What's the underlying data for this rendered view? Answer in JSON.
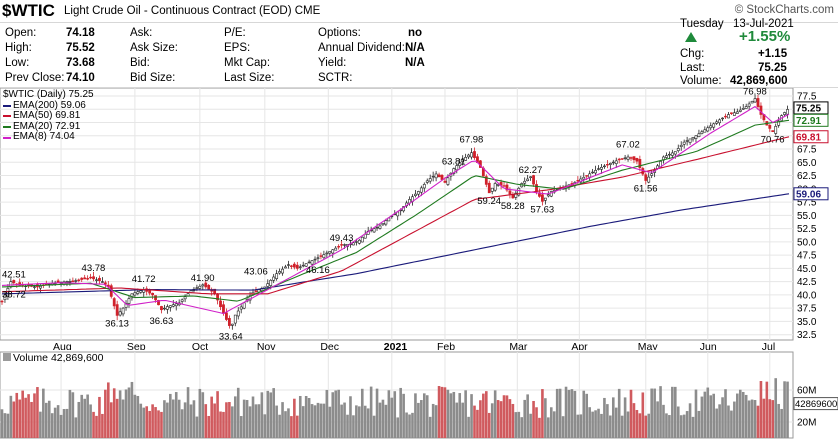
{
  "header": {
    "symbol": "$WTIC",
    "name": "Light Crude Oil - Continuous Contract (EOD)",
    "exchange": "CME",
    "watermark": "© StockCharts.com",
    "day": "Tuesday",
    "date": "13-Jul-2021"
  },
  "quote": {
    "open_label": "Open:",
    "open": "74.18",
    "high_label": "High:",
    "high": "75.52",
    "low_label": "Low:",
    "low": "73.68",
    "prev_label": "Prev Close:",
    "prev": "74.10",
    "ask_label": "Ask:",
    "ask_size_label": "Ask Size:",
    "bid_label": "Bid:",
    "bid_size_label": "Bid Size:",
    "pe_label": "P/E:",
    "eps_label": "EPS:",
    "mktcap_label": "Mkt Cap:",
    "lastsize_label": "Last Size:",
    "options_label": "Options:",
    "options": "no",
    "dividend_label": "Annual Dividend:",
    "dividend": "N/A",
    "yield_label": "Yield:",
    "yield": "N/A",
    "sctr_label": "SCTR:",
    "pct_change": "+1.55%",
    "chg_label": "Chg:",
    "chg": "+1.15",
    "last_label": "Last:",
    "last": "75.25",
    "volume_label": "Volume:",
    "volume": "42,869,600"
  },
  "legend": {
    "header": "$WTIC (Daily) 75.25",
    "items": [
      {
        "text": "EMA(200) 59.06",
        "color": "#1a1a7a"
      },
      {
        "text": "EMA(50) 69.81",
        "color": "#c8102e"
      },
      {
        "text": "EMA(20) 72.91",
        "color": "#1f7a1f"
      },
      {
        "text": "EMA(8) 74.04",
        "color": "#d020c8"
      }
    ]
  },
  "volume_panel": {
    "label": "Volume 42,869,600",
    "ticks": [
      "60M",
      "20M"
    ],
    "last_tag": "42869600"
  },
  "chart_data": {
    "type": "candlestick",
    "x_labels": [
      "Aug",
      "Sep",
      "Oct",
      "Nov",
      "Dec",
      "2021",
      "Feb",
      "Mar",
      "Apr",
      "May",
      "Jun",
      "Jul"
    ],
    "y_ticks": [
      "77.5",
      "75.0",
      "72.5",
      "70.0",
      "67.5",
      "65.0",
      "62.5",
      "60.0",
      "57.5",
      "55.0",
      "52.5",
      "50.0",
      "47.5",
      "45.0",
      "42.5",
      "40.0",
      "37.5",
      "35.0",
      "32.5"
    ],
    "ylim": [
      31.5,
      79
    ],
    "price_path": [
      [
        0,
        38.7
      ],
      [
        6,
        42.5
      ],
      [
        12,
        41.8
      ],
      [
        24,
        41.5
      ],
      [
        36,
        42.3
      ],
      [
        48,
        42.6
      ],
      [
        60,
        43.2
      ],
      [
        68,
        42.5
      ],
      [
        72,
        41.5
      ],
      [
        78,
        36.13
      ],
      [
        82,
        37.5
      ],
      [
        88,
        40.2
      ],
      [
        96,
        41.0
      ],
      [
        102,
        40.0
      ],
      [
        108,
        37.2
      ],
      [
        112,
        37.8
      ],
      [
        120,
        38.5
      ],
      [
        128,
        40.8
      ],
      [
        136,
        41.9
      ],
      [
        144,
        40.3
      ],
      [
        150,
        36.5
      ],
      [
        155,
        33.64
      ],
      [
        158,
        36.2
      ],
      [
        164,
        38.5
      ],
      [
        170,
        40.5
      ],
      [
        178,
        41.5
      ],
      [
        186,
        44.0
      ],
      [
        194,
        45.7
      ],
      [
        200,
        45.0
      ],
      [
        208,
        46.2
      ],
      [
        214,
        47.0
      ],
      [
        222,
        48.2
      ],
      [
        230,
        49.43
      ],
      [
        236,
        49.6
      ],
      [
        242,
        50.3
      ],
      [
        248,
        52.0
      ],
      [
        256,
        53.0
      ],
      [
        262,
        54.5
      ],
      [
        270,
        56.0
      ],
      [
        276,
        58.0
      ],
      [
        282,
        59.5
      ],
      [
        288,
        61.5
      ],
      [
        294,
        62.8
      ],
      [
        300,
        61.2
      ],
      [
        306,
        63.81
      ],
      [
        312,
        65.5
      ],
      [
        318,
        66.8
      ],
      [
        324,
        64.0
      ],
      [
        330,
        59.24
      ],
      [
        334,
        61.0
      ],
      [
        340,
        60.5
      ],
      [
        346,
        58.28
      ],
      [
        352,
        61.0
      ],
      [
        358,
        62.27
      ],
      [
        362,
        59.5
      ],
      [
        366,
        57.63
      ],
      [
        372,
        59.5
      ],
      [
        380,
        60.3
      ],
      [
        388,
        61.2
      ],
      [
        396,
        62.5
      ],
      [
        404,
        63.8
      ],
      [
        412,
        64.8
      ],
      [
        418,
        65.5
      ],
      [
        424,
        66.0
      ],
      [
        430,
        65.2
      ],
      [
        436,
        61.56
      ],
      [
        442,
        63.5
      ],
      [
        448,
        66.0
      ],
      [
        456,
        67.02
      ],
      [
        462,
        68.8
      ],
      [
        470,
        70.0
      ],
      [
        478,
        71.5
      ],
      [
        486,
        73.0
      ],
      [
        492,
        74.0
      ],
      [
        498,
        74.5
      ],
      [
        504,
        75.5
      ],
      [
        510,
        76.98
      ],
      [
        514,
        74.0
      ],
      [
        518,
        72.0
      ],
      [
        522,
        70.76
      ],
      [
        528,
        73.8
      ],
      [
        533,
        75.25
      ]
    ],
    "ema200_path": [
      [
        0,
        40.2
      ],
      [
        100,
        41.0
      ],
      [
        170,
        40.9
      ],
      [
        240,
        44.0
      ],
      [
        320,
        48.5
      ],
      [
        400,
        53.0
      ],
      [
        460,
        56.0
      ],
      [
        533,
        59.06
      ]
    ],
    "ema50_path": [
      [
        0,
        40.6
      ],
      [
        80,
        41.3
      ],
      [
        140,
        40.2
      ],
      [
        180,
        40.2
      ],
      [
        230,
        44.5
      ],
      [
        280,
        52.0
      ],
      [
        320,
        58.0
      ],
      [
        370,
        59.8
      ],
      [
        420,
        62.2
      ],
      [
        470,
        65.5
      ],
      [
        533,
        69.81
      ]
    ],
    "ema20_path": [
      [
        0,
        41.5
      ],
      [
        60,
        42.2
      ],
      [
        90,
        39.5
      ],
      [
        130,
        39.8
      ],
      [
        160,
        38.8
      ],
      [
        200,
        43.5
      ],
      [
        240,
        48.0
      ],
      [
        280,
        55.0
      ],
      [
        320,
        62.5
      ],
      [
        350,
        60.8
      ],
      [
        380,
        59.9
      ],
      [
        420,
        63.5
      ],
      [
        470,
        67.0
      ],
      [
        510,
        72.0
      ],
      [
        533,
        72.91
      ]
    ],
    "ema8_path": [
      [
        0,
        41.8
      ],
      [
        40,
        42.3
      ],
      [
        70,
        42.0
      ],
      [
        85,
        38.0
      ],
      [
        110,
        39.0
      ],
      [
        150,
        36.5
      ],
      [
        180,
        41.0
      ],
      [
        230,
        48.5
      ],
      [
        280,
        58.0
      ],
      [
        300,
        62.0
      ],
      [
        320,
        65.5
      ],
      [
        340,
        60.0
      ],
      [
        370,
        59.0
      ],
      [
        420,
        64.5
      ],
      [
        440,
        63.0
      ],
      [
        480,
        70.5
      ],
      [
        510,
        75.5
      ],
      [
        522,
        72.5
      ],
      [
        533,
        74.04
      ]
    ],
    "annotations": [
      {
        "text": "42.51",
        "x": 2,
        "y": 42.51
      },
      {
        "text": "38.72",
        "x": 0,
        "y": 38.72
      },
      {
        "text": "43.78",
        "x": 62,
        "y": 43.78
      },
      {
        "text": "36.13",
        "x": 78,
        "y": 36.13
      },
      {
        "text": "41.72",
        "x": 96,
        "y": 41.72
      },
      {
        "text": "36.63",
        "x": 108,
        "y": 36.63
      },
      {
        "text": "41.90",
        "x": 136,
        "y": 41.9
      },
      {
        "text": "33.64",
        "x": 155,
        "y": 33.64
      },
      {
        "text": "43.06",
        "x": 172,
        "y": 43.06
      },
      {
        "text": "46.16",
        "x": 214,
        "y": 46.16
      },
      {
        "text": "49.43",
        "x": 230,
        "y": 49.43
      },
      {
        "text": "63.81",
        "x": 306,
        "y": 63.81
      },
      {
        "text": "67.98",
        "x": 318,
        "y": 67.98
      },
      {
        "text": "59.24",
        "x": 330,
        "y": 59.24
      },
      {
        "text": "58.28",
        "x": 346,
        "y": 58.28
      },
      {
        "text": "62.27",
        "x": 358,
        "y": 62.27
      },
      {
        "text": "57.63",
        "x": 366,
        "y": 57.63
      },
      {
        "text": "67.02",
        "x": 424,
        "y": 67.02
      },
      {
        "text": "61.56",
        "x": 436,
        "y": 61.56
      },
      {
        "text": "76.98",
        "x": 510,
        "y": 76.98
      },
      {
        "text": "70.76",
        "x": 522,
        "y": 70.76
      }
    ],
    "last_tags": [
      {
        "text": "75.25",
        "value": 75.25,
        "color": "#000000",
        "bg": "#ffffff"
      },
      {
        "text": "72.91",
        "value": 72.91,
        "color": "#1f7a1f",
        "bg": "#ffffff"
      },
      {
        "text": "69.81",
        "value": 69.81,
        "color": "#c8102e",
        "bg": "#ffffff"
      },
      {
        "text": "59.06",
        "value": 59.06,
        "color": "#1a1a7a",
        "bg": "#ffffff"
      }
    ],
    "volume_range": [
      0,
      90
    ]
  }
}
